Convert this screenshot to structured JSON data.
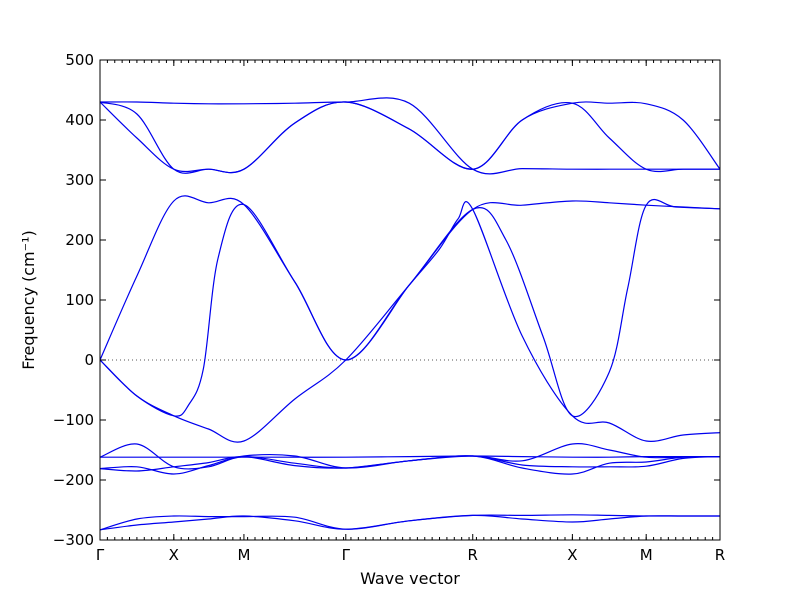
{
  "chart_data": {
    "type": "line",
    "title": "",
    "xlabel": "Wave vector",
    "ylabel": "Frequency (cm⁻¹)",
    "ylim": [
      -300,
      500
    ],
    "yticks": [
      -300,
      -200,
      -100,
      0,
      100,
      200,
      300,
      400,
      500
    ],
    "ytick_labels": [
      "−300",
      "−200",
      "−100",
      "0",
      "100",
      "200",
      "300",
      "400",
      "500"
    ],
    "xlim": [
      0,
      8.4
    ],
    "xticks": [
      0,
      1,
      1.95,
      3.33,
      5.05,
      6.4,
      7.4,
      8.4
    ],
    "xtick_labels": [
      "Γ",
      "X",
      "M",
      "Γ",
      "R",
      "X",
      "M",
      "R"
    ],
    "zero_line": 0,
    "grid": false,
    "legend": "none",
    "line_color": "#0000ee",
    "series": [
      {
        "x": [
          0,
          0.5,
          1,
          1.47,
          1.95,
          2.64,
          3.33,
          4.19,
          5.05,
          5.72,
          6.4,
          6.9,
          7.4,
          7.9,
          8.4
        ],
        "values": [
          430,
          430,
          428,
          427,
          427,
          428,
          430,
          428,
          318,
          319,
          318,
          318,
          318,
          318,
          318
        ]
      },
      {
        "x": [
          0,
          0.5,
          1,
          1.47,
          1.95,
          2.64,
          3.33,
          4.19,
          5.05,
          5.72,
          6.4,
          6.9,
          7.4,
          7.9,
          8.4
        ],
        "values": [
          430,
          410,
          318,
          318,
          318,
          395,
          430,
          385,
          318,
          400,
          428,
          428,
          427,
          400,
          318
        ]
      },
      {
        "x": [
          0,
          0.5,
          1,
          1.47,
          1.95,
          2.64,
          3.33,
          4.19,
          5.05,
          5.72,
          6.4,
          6.9,
          7.4,
          7.9,
          8.4
        ],
        "values": [
          430,
          370,
          318,
          318,
          318,
          395,
          430,
          385,
          318,
          400,
          428,
          370,
          318,
          318,
          318
        ]
      },
      {
        "x": [
          0,
          0.5,
          1,
          1.47,
          1.95,
          2.64,
          3.33,
          4.19,
          5.05,
          5.72,
          6.4,
          6.9,
          7.4,
          7.9,
          8.4
        ],
        "values": [
          0,
          140,
          265,
          262,
          259,
          130,
          0,
          125,
          251,
          258,
          265,
          262,
          258,
          255,
          252
        ]
      },
      {
        "x": [
          0,
          0.5,
          1,
          1.2,
          1.4,
          1.6,
          1.95,
          2.64,
          3.33,
          4.19,
          4.6,
          4.85,
          5.05,
          5.72,
          6.4,
          6.9,
          7.4,
          7.9,
          8.4
        ],
        "values": [
          0,
          -60,
          -93,
          -75,
          -15,
          170,
          259,
          130,
          0,
          125,
          185,
          235,
          251,
          40,
          -93,
          -105,
          -135,
          -125,
          -121
        ]
      },
      {
        "x": [
          0,
          0.5,
          1,
          1.47,
          1.95,
          2.64,
          3.33,
          4.19,
          5.05,
          5.5,
          6.0,
          6.4,
          6.9,
          7.15,
          7.4,
          7.8,
          8.4
        ],
        "values": [
          0,
          -60,
          -93,
          -115,
          -135,
          -65,
          0,
          125,
          251,
          200,
          40,
          -93,
          -20,
          120,
          258,
          255,
          252
        ]
      },
      {
        "x": [
          0,
          0.5,
          1,
          1.47,
          1.95,
          2.64,
          3.33,
          4.19,
          5.05,
          5.72,
          6.4,
          6.9,
          7.4,
          7.9,
          8.4
        ],
        "values": [
          -162,
          -162,
          -162,
          -162,
          -162,
          -162,
          -162,
          -161,
          -160,
          -161,
          -162,
          -162,
          -161,
          -161,
          -161
        ]
      },
      {
        "x": [
          0,
          0.5,
          1,
          1.47,
          1.95,
          2.64,
          3.33,
          4.19,
          5.05,
          5.72,
          6.4,
          6.9,
          7.4,
          7.9,
          8.4
        ],
        "values": [
          -162,
          -140,
          -178,
          -178,
          -161,
          -172,
          -180,
          -168,
          -160,
          -175,
          -178,
          -178,
          -177,
          -164,
          -161
        ]
      },
      {
        "x": [
          0,
          0.5,
          1,
          1.47,
          1.95,
          2.64,
          3.33,
          4.19,
          5.05,
          5.72,
          6.4,
          6.9,
          7.4,
          7.9,
          8.4
        ],
        "values": [
          -181,
          -178,
          -190,
          -176,
          -160,
          -160,
          -180,
          -168,
          -160,
          -168,
          -140,
          -150,
          -162,
          -162,
          -161
        ]
      },
      {
        "x": [
          0,
          0.5,
          1,
          1.47,
          1.95,
          2.64,
          3.33,
          4.19,
          5.05,
          5.72,
          6.4,
          6.9,
          7.4,
          7.9,
          8.4
        ],
        "values": [
          -181,
          -185,
          -178,
          -171,
          -161,
          -176,
          -180,
          -168,
          -160,
          -180,
          -190,
          -172,
          -170,
          -162,
          -161
        ]
      },
      {
        "x": [
          0,
          0.5,
          1,
          1.47,
          1.95,
          2.64,
          3.33,
          4.19,
          5.05,
          5.72,
          6.4,
          6.9,
          7.4,
          7.9,
          8.4
        ],
        "values": [
          -283,
          -265,
          -260,
          -261,
          -261,
          -262,
          -282,
          -268,
          -259,
          -259,
          -258,
          -259,
          -260,
          -260,
          -260
        ]
      },
      {
        "x": [
          0,
          0.5,
          1,
          1.47,
          1.95,
          2.64,
          3.33,
          4.19,
          5.05,
          5.72,
          6.4,
          6.9,
          7.4,
          7.9,
          8.4
        ],
        "values": [
          -283,
          -275,
          -270,
          -265,
          -260,
          -268,
          -282,
          -268,
          -259,
          -265,
          -270,
          -265,
          -260,
          -260,
          -260
        ]
      }
    ]
  }
}
